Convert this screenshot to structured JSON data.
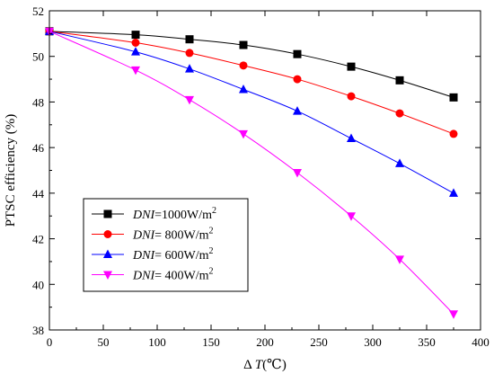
{
  "chart_data": {
    "type": "line",
    "title": "",
    "xlabel": "Δ T(℃)",
    "xlabel_prefix": "Δ ",
    "xlabel_var": "T",
    "xlabel_unit": "(℃)",
    "ylabel": "PTSC efficiency (%)",
    "xlim": [
      0,
      400
    ],
    "ylim": [
      38,
      52
    ],
    "xticks": [
      0,
      50,
      100,
      150,
      200,
      250,
      300,
      350,
      400
    ],
    "yticks": [
      38,
      40,
      42,
      44,
      46,
      48,
      50,
      52
    ],
    "grid": false,
    "legend_position": "lower-left",
    "series": [
      {
        "name": "DNI=1000W/m2",
        "legend_var": "DNI",
        "legend_rest": "=1000W/m",
        "legend_sup": "2",
        "color": "#000000",
        "marker": "square",
        "x": [
          0,
          80,
          130,
          180,
          230,
          280,
          325,
          375
        ],
        "y": [
          51.1,
          50.95,
          50.75,
          50.5,
          50.1,
          49.55,
          48.95,
          48.2
        ]
      },
      {
        "name": "DNI= 800W/m2",
        "legend_var": "DNI",
        "legend_rest": "= 800W/m",
        "legend_sup": "2",
        "color": "#ff0000",
        "marker": "circle",
        "x": [
          0,
          80,
          130,
          180,
          230,
          280,
          325,
          375
        ],
        "y": [
          51.1,
          50.6,
          50.15,
          49.6,
          49.0,
          48.25,
          47.5,
          46.6
        ]
      },
      {
        "name": "DNI= 600W/m2",
        "legend_var": "DNI",
        "legend_rest": "= 600W/m",
        "legend_sup": "2",
        "color": "#0000ff",
        "marker": "triangle-up",
        "x": [
          0,
          80,
          130,
          180,
          230,
          280,
          325,
          375
        ],
        "y": [
          51.1,
          50.2,
          49.45,
          48.55,
          47.6,
          46.4,
          45.3,
          44.0
        ]
      },
      {
        "name": "DNI= 400W/m2",
        "legend_var": "DNI",
        "legend_rest": "= 400W/m",
        "legend_sup": "2",
        "color": "#ff00ff",
        "marker": "triangle-down",
        "x": [
          0,
          80,
          130,
          180,
          230,
          280,
          325,
          375
        ],
        "y": [
          51.1,
          49.4,
          48.1,
          46.6,
          44.9,
          43.0,
          41.1,
          38.7
        ]
      }
    ]
  }
}
